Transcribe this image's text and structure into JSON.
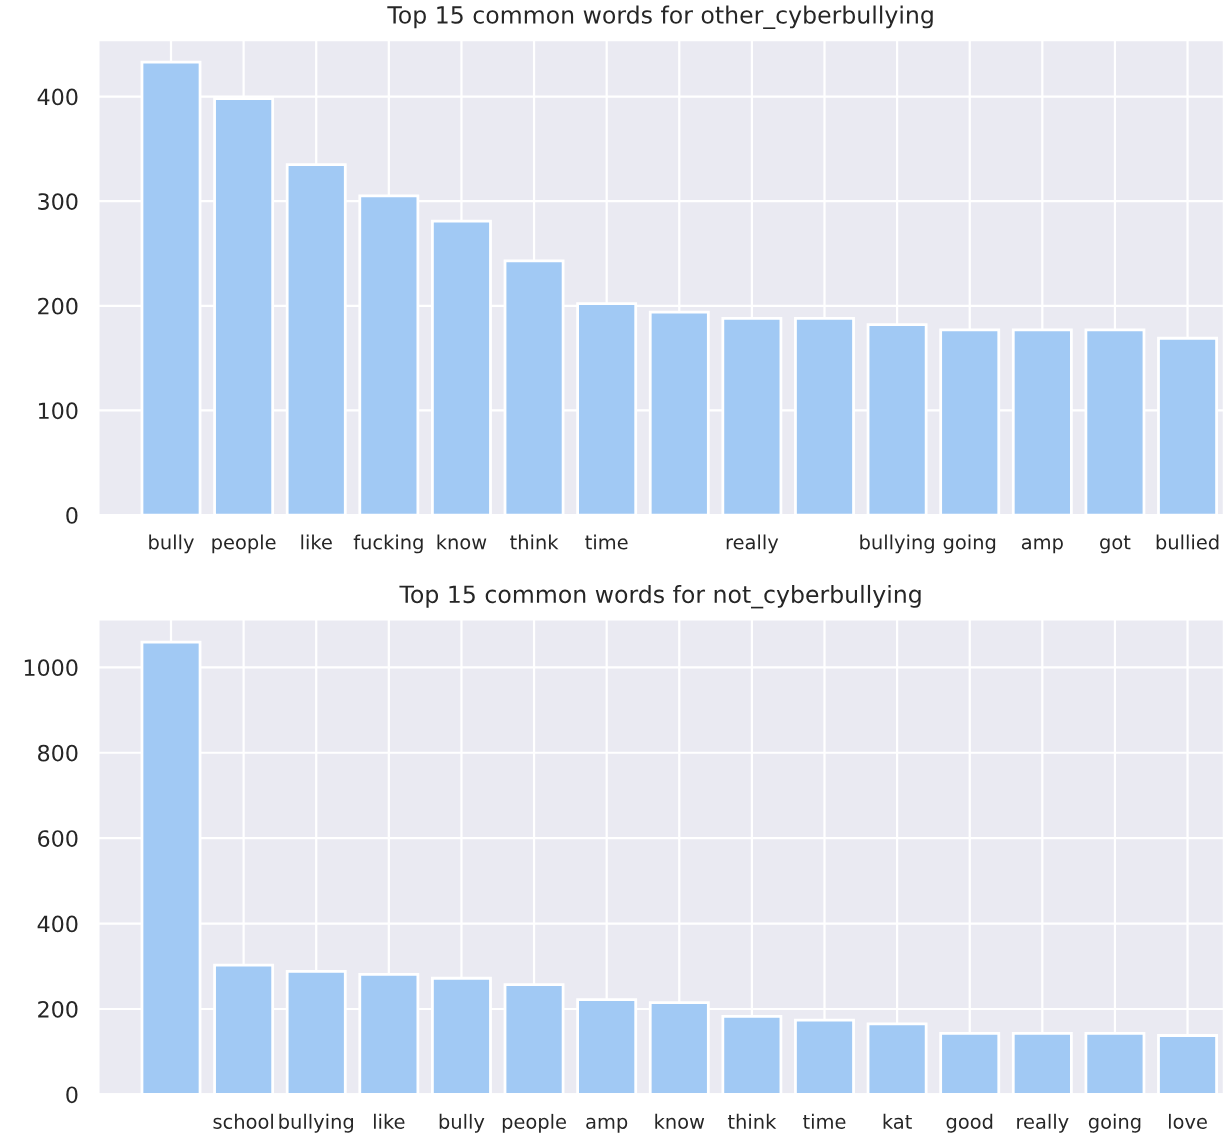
{
  "chart_data": [
    {
      "type": "bar",
      "title": "Top 15 common words for other_cyberbullying",
      "categories": [
        "bully",
        "people",
        "like",
        "fucking",
        "know",
        "think",
        "time",
        null,
        "really",
        null,
        "bullying",
        "going",
        "amp",
        "got",
        "bullied"
      ],
      "values": [
        433,
        398,
        335,
        305,
        281,
        243,
        202,
        194,
        188,
        188,
        182,
        177,
        177,
        177,
        169
      ],
      "color": "#a1c9f4",
      "ylim": [
        0,
        454
      ],
      "yticks": [
        0,
        100,
        200,
        300,
        400
      ],
      "grid": true
    },
    {
      "type": "bar",
      "title": "Top 15 common words for not_cyberbullying",
      "categories": [
        null,
        "school",
        "bullying",
        "like",
        "bully",
        "people",
        "amp",
        "know",
        "think",
        "time",
        "kat",
        "good",
        "really",
        "going",
        "love"
      ],
      "values": [
        1059,
        303,
        288,
        281,
        272,
        257,
        222,
        215,
        183,
        174,
        165,
        143,
        143,
        143,
        138
      ],
      "color": "#a1c9f4",
      "ylim": [
        0,
        1112
      ],
      "yticks": [
        0,
        200,
        400,
        600,
        800,
        1000
      ],
      "grid": true
    }
  ]
}
